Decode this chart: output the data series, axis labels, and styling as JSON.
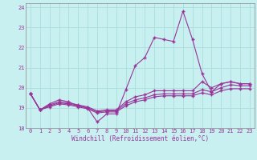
{
  "title": "",
  "xlabel": "Windchill (Refroidissement éolien,°C)",
  "xlim": [
    -0.5,
    23.5
  ],
  "ylim": [
    18,
    24.2
  ],
  "yticks": [
    18,
    19,
    20,
    21,
    22,
    23,
    24
  ],
  "xticks": [
    0,
    1,
    2,
    3,
    4,
    5,
    6,
    7,
    8,
    9,
    10,
    11,
    12,
    13,
    14,
    15,
    16,
    17,
    18,
    19,
    20,
    21,
    22,
    23
  ],
  "background_color": "#c8f0f0",
  "grid_color": "#aadddd",
  "line_color": "#993399",
  "line1_y": [
    19.7,
    18.9,
    19.2,
    19.4,
    19.3,
    19.1,
    19.0,
    18.3,
    18.7,
    18.7,
    19.9,
    21.1,
    21.5,
    22.5,
    22.4,
    22.3,
    23.8,
    22.4,
    20.7,
    19.8,
    20.2,
    20.3,
    20.2,
    20.2
  ],
  "line2_y": [
    19.7,
    18.9,
    19.15,
    19.3,
    19.25,
    19.15,
    19.05,
    18.85,
    18.9,
    18.9,
    19.3,
    19.55,
    19.65,
    19.85,
    19.85,
    19.85,
    19.85,
    19.85,
    20.3,
    20.0,
    20.2,
    20.3,
    20.2,
    20.2
  ],
  "line3_y": [
    19.7,
    18.9,
    19.1,
    19.25,
    19.2,
    19.1,
    19.0,
    18.8,
    18.85,
    18.85,
    19.2,
    19.4,
    19.5,
    19.65,
    19.7,
    19.7,
    19.7,
    19.7,
    19.9,
    19.8,
    20.0,
    20.15,
    20.1,
    20.1
  ],
  "line4_y": [
    19.7,
    18.9,
    19.05,
    19.2,
    19.15,
    19.05,
    18.95,
    18.75,
    18.8,
    18.8,
    19.1,
    19.3,
    19.4,
    19.55,
    19.6,
    19.6,
    19.6,
    19.6,
    19.75,
    19.65,
    19.85,
    19.95,
    19.95,
    19.95
  ]
}
